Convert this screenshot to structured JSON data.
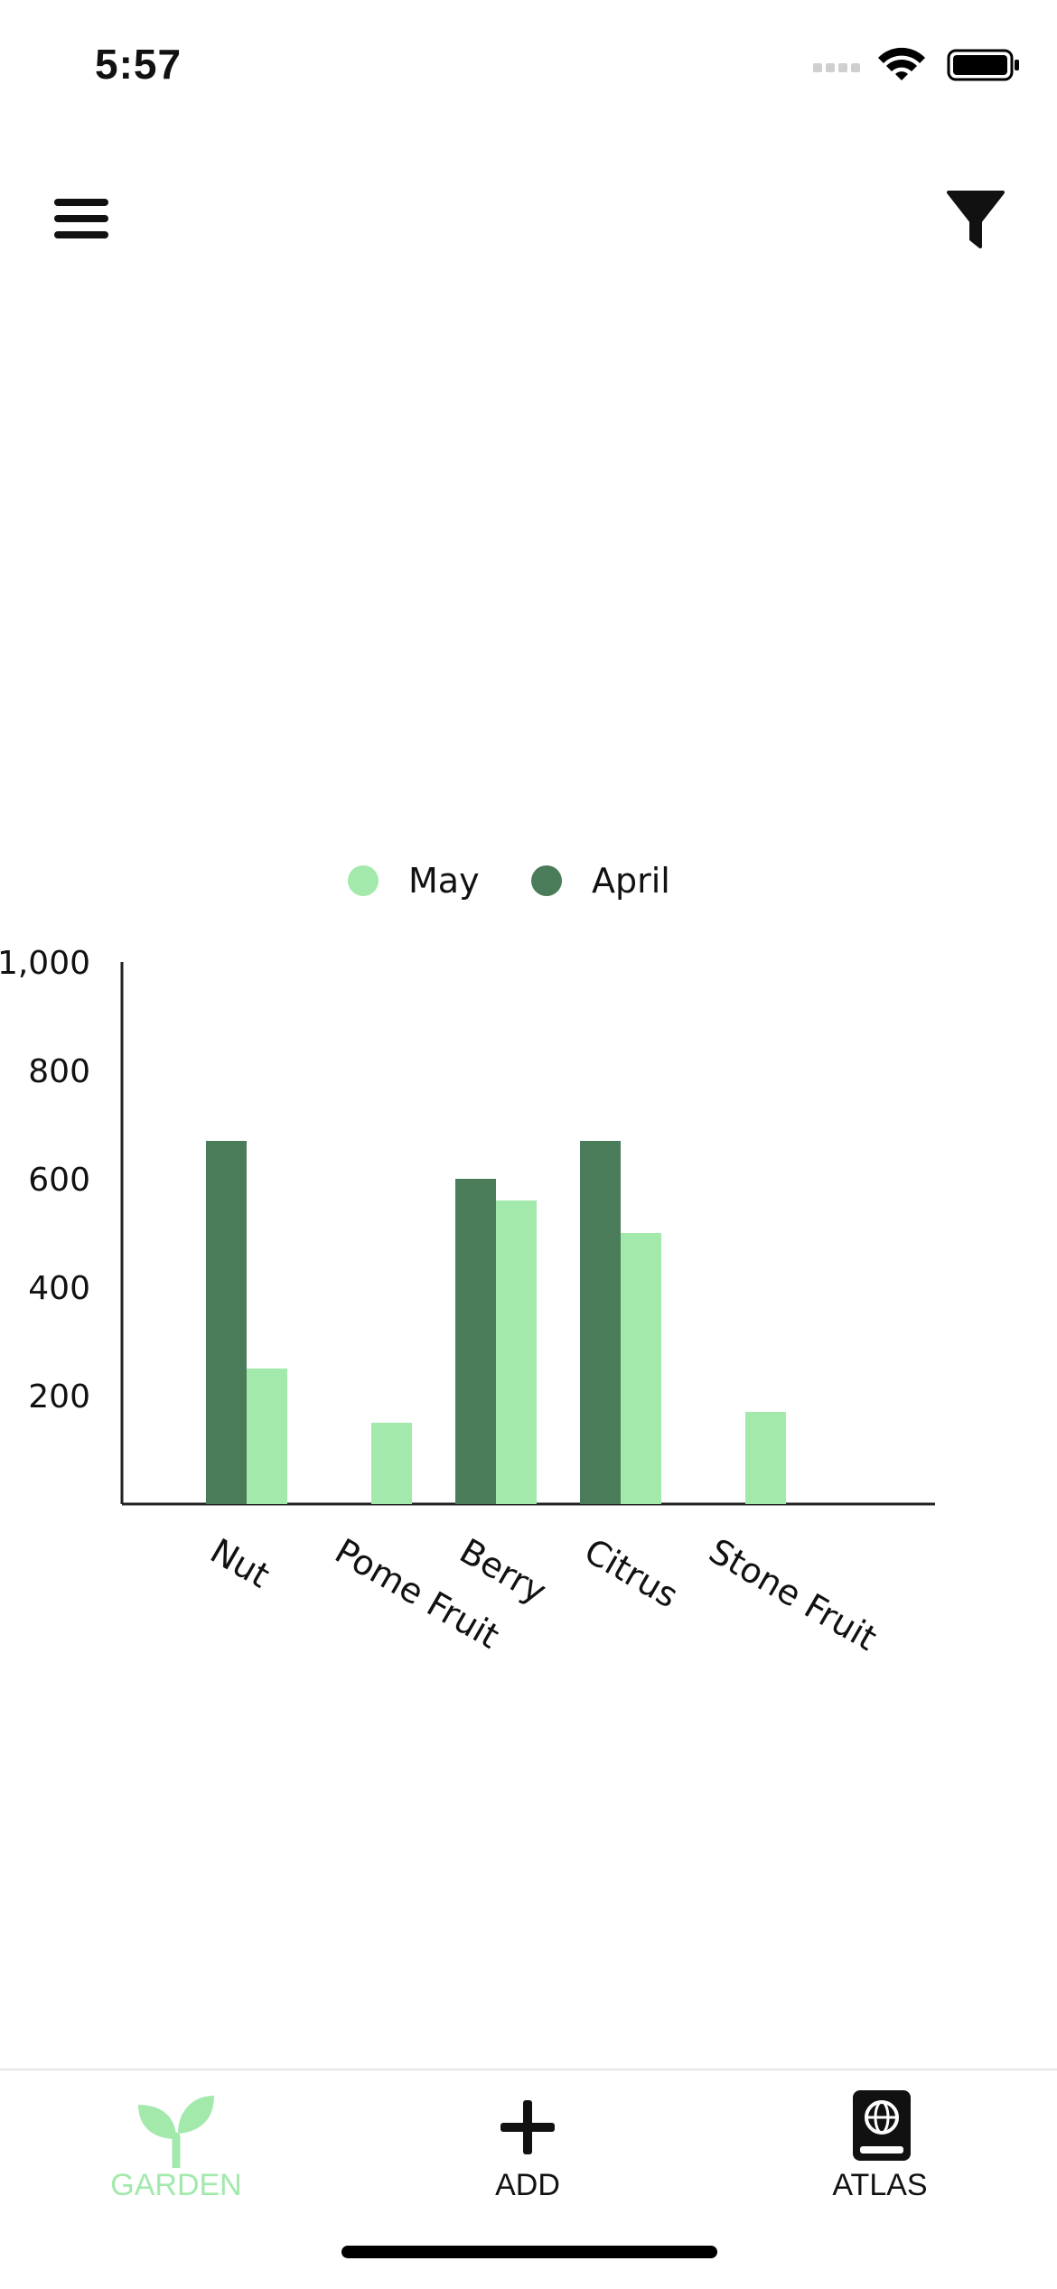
{
  "status_bar": {
    "time": "5:57"
  },
  "toolbar": {
    "menu_icon": "hamburger-menu-icon",
    "filter_icon": "filter-funnel-icon"
  },
  "chart_data": {
    "type": "bar",
    "categories": [
      "Nut",
      "Pome Fruit",
      "Berry",
      "Citrus",
      "Stone Fruit"
    ],
    "series": [
      {
        "name": "April",
        "values": [
          670,
          0,
          600,
          670,
          0
        ],
        "color": "#4a7c59"
      },
      {
        "name": "May",
        "values": [
          250,
          150,
          560,
          500,
          170
        ],
        "color": "#a3e9ac"
      }
    ],
    "legend_order": [
      "May",
      "April"
    ],
    "legend_placement": "top-center",
    "ylim": [
      0,
      1000
    ],
    "yticks": [
      200,
      400,
      600,
      800,
      1000
    ],
    "ytick_labels": [
      "200",
      "400",
      "600",
      "800",
      "1,000"
    ],
    "grid": false,
    "xlabel": "",
    "ylabel": "",
    "title": ""
  },
  "tabs": [
    {
      "label": "GARDEN",
      "icon": "sprout-icon",
      "active": true,
      "color": "#a3e9ac"
    },
    {
      "label": "ADD",
      "icon": "plus-icon",
      "active": false,
      "color": "#111111"
    },
    {
      "label": "ATLAS",
      "icon": "atlas-book-icon",
      "active": false,
      "color": "#111111"
    }
  ]
}
